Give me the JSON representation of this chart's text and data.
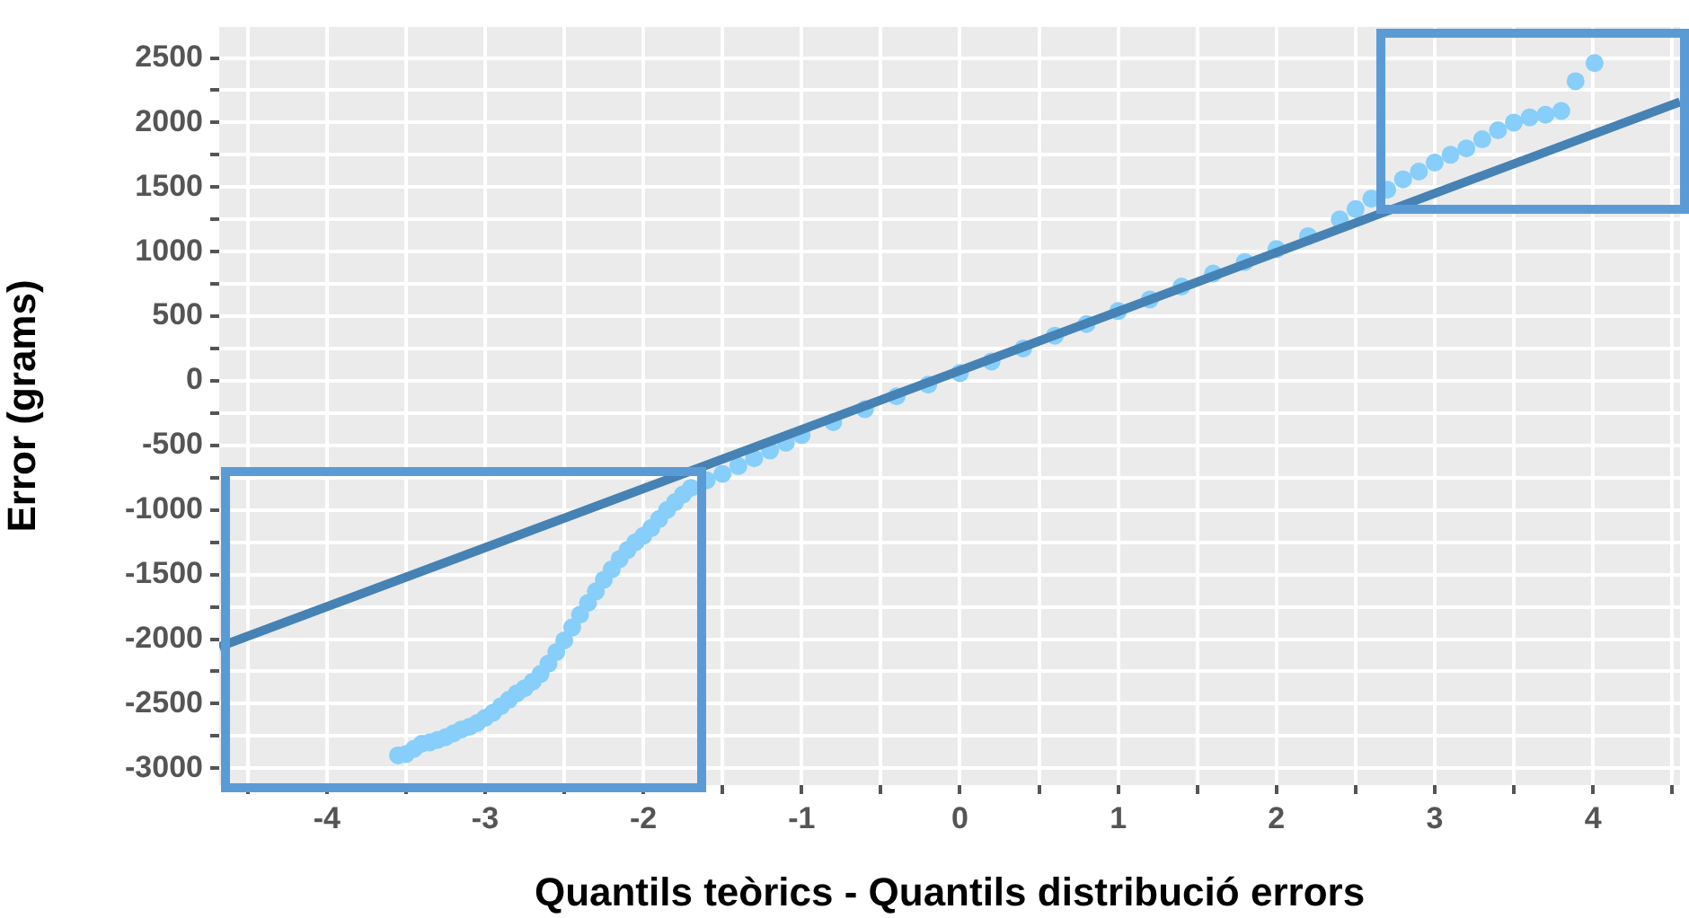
{
  "chart_data": {
    "type": "scatter",
    "xlabel": "Quantils teòrics - Quantils distribució errors",
    "ylabel": "Error (grams)",
    "xlim": [
      -4.68,
      4.55
    ],
    "ylim": [
      -3130,
      2740
    ],
    "xticks": [
      {
        "value": -4.5,
        "label": null
      },
      -4,
      {
        "value": -3.5,
        "label": null
      },
      -3,
      {
        "value": -2.5,
        "label": null
      },
      -2,
      {
        "value": -1.5,
        "label": null
      },
      -1,
      {
        "value": -0.5,
        "label": null
      },
      0,
      {
        "value": 0.5,
        "label": null
      },
      1,
      {
        "value": 1.5,
        "label": null
      },
      2,
      {
        "value": 2.5,
        "label": null
      },
      3,
      {
        "value": 3.5,
        "label": null
      },
      4,
      {
        "value": 4.5,
        "label": null
      }
    ],
    "yticks": [
      -3000,
      {
        "value": -2750,
        "label": null
      },
      -2500,
      {
        "value": -2250,
        "label": null
      },
      -2000,
      {
        "value": -1750,
        "label": null
      },
      -1500,
      {
        "value": -1250,
        "label": null
      },
      -1000,
      {
        "value": -750,
        "label": null
      },
      -500,
      {
        "value": -250,
        "label": null
      },
      0,
      {
        "value": 250,
        "label": null
      },
      500,
      {
        "value": 750,
        "label": null
      },
      1000,
      {
        "value": 1250,
        "label": null
      },
      1500,
      {
        "value": 1750,
        "label": null
      },
      2000,
      {
        "value": 2250,
        "label": null
      },
      2500
    ],
    "grid": true,
    "series": [
      {
        "marker": "circle",
        "color": "#87cefa",
        "x": [
          -3.55,
          -3.5,
          -3.45,
          -3.4,
          -3.35,
          -3.3,
          -3.25,
          -3.2,
          -3.15,
          -3.1,
          -3.05,
          -3.0,
          -2.95,
          -2.9,
          -2.85,
          -2.8,
          -2.75,
          -2.7,
          -2.65,
          -2.6,
          -2.55,
          -2.5,
          -2.45,
          -2.4,
          -2.35,
          -2.3,
          -2.25,
          -2.2,
          -2.15,
          -2.1,
          -2.05,
          -2.0,
          -1.95,
          -1.9,
          -1.85,
          -1.8,
          -1.75,
          -1.7,
          -1.6,
          -1.5,
          -1.4,
          -1.3,
          -1.2,
          -1.1,
          -1.0,
          -0.8,
          -0.6,
          -0.4,
          -0.2,
          0,
          0.2,
          0.4,
          0.6,
          0.8,
          1.0,
          1.2,
          1.4,
          1.6,
          1.8,
          2.0,
          2.2,
          2.4,
          2.5,
          2.6,
          2.7,
          2.8,
          2.9,
          3.0,
          3.1,
          3.2,
          3.3,
          3.4,
          3.5,
          3.6,
          3.7,
          3.8,
          3.89,
          4.01
        ],
        "values": [
          -2900,
          -2890,
          -2850,
          -2810,
          -2800,
          -2780,
          -2760,
          -2730,
          -2700,
          -2680,
          -2650,
          -2610,
          -2570,
          -2520,
          -2470,
          -2420,
          -2380,
          -2330,
          -2270,
          -2190,
          -2100,
          -2010,
          -1910,
          -1810,
          -1720,
          -1630,
          -1540,
          -1460,
          -1380,
          -1310,
          -1250,
          -1200,
          -1140,
          -1070,
          -1000,
          -940,
          -880,
          -830,
          -770,
          -720,
          -660,
          -600,
          -540,
          -480,
          -420,
          -320,
          -220,
          -120,
          -30,
          60,
          150,
          250,
          350,
          440,
          540,
          630,
          730,
          830,
          920,
          1020,
          1120,
          1250,
          1330,
          1410,
          1480,
          1560,
          1620,
          1690,
          1750,
          1800,
          1870,
          1940,
          2000,
          2040,
          2060,
          2090,
          2320,
          2460
        ]
      },
      {
        "type": "line",
        "marker": "none",
        "color": "#4682b4",
        "x": [
          -4.68,
          4.55
        ],
        "values": [
          -2060,
          2160
        ]
      }
    ]
  }
}
